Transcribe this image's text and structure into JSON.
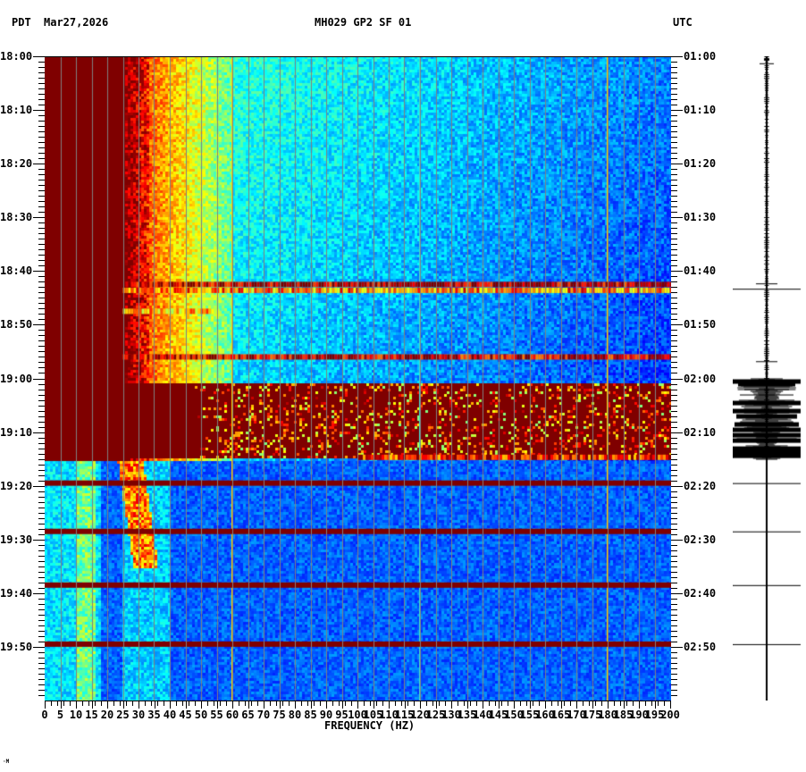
{
  "header": {
    "left_tz": "PDT",
    "date": "Mar27,2026",
    "station": "MH029 GP2 SF 01",
    "right_tz": "UTC"
  },
  "colors": {
    "background": "#ffffff",
    "saturated": "#800000",
    "grid": "#808080",
    "axis": "#000000",
    "colormap": [
      "#00008f",
      "#0000ff",
      "#0080ff",
      "#00ffff",
      "#80ff80",
      "#ffff00",
      "#ff8000",
      "#ff0000",
      "#800000"
    ]
  },
  "chart_data": {
    "type": "heatmap",
    "title": "MH029 GP2 SF 01",
    "subtitle": "Mar27,2026",
    "xlabel": "FREQUENCY (HZ)",
    "ylabel_left": "PDT",
    "ylabel_right": "UTC",
    "xlim": [
      0,
      200
    ],
    "x_ticks": [
      0,
      5,
      10,
      15,
      20,
      25,
      30,
      35,
      40,
      45,
      50,
      55,
      60,
      65,
      70,
      75,
      80,
      85,
      90,
      95,
      100,
      105,
      110,
      115,
      120,
      125,
      130,
      135,
      140,
      145,
      150,
      155,
      160,
      165,
      170,
      175,
      180,
      185,
      190,
      195,
      200
    ],
    "x_tick_labels": [
      "0",
      "5",
      "10",
      "15",
      "20",
      "25",
      "30",
      "35",
      "40",
      "45",
      "50",
      "55",
      "60",
      "65",
      "70",
      "75",
      "80",
      "85",
      "90",
      "95",
      "100",
      "105",
      "110",
      "115",
      "120",
      "125",
      "130",
      "135",
      "140",
      "145",
      "150",
      "155",
      "160",
      "165",
      "170",
      "175",
      "180",
      "185",
      "190",
      "195",
      "200"
    ],
    "y_left_ticks": [
      "18:00",
      "18:10",
      "18:20",
      "18:30",
      "18:40",
      "18:50",
      "19:00",
      "19:10",
      "19:20",
      "19:30",
      "19:40",
      "19:50"
    ],
    "y_right_ticks": [
      "01:00",
      "01:10",
      "01:20",
      "01:30",
      "01:40",
      "01:50",
      "02:00",
      "02:10",
      "02:20",
      "02:30",
      "02:40",
      "02:50"
    ],
    "time_span_minutes": 120,
    "minor_tick_minutes": 1,
    "grid": {
      "vertical_every_hz": 5,
      "horizontal": false
    },
    "persistent_lines_hz": [
      60,
      120,
      180
    ],
    "segments": [
      {
        "from_min": 0,
        "to_min": 75,
        "saturated_below_hz": 25,
        "decay_edge_hz": 32,
        "noise_floor": 0.28,
        "description": "strong low-frequency noise saturated 0-25 Hz, yellow-green to 60 Hz, blue above"
      },
      {
        "from_min": 75,
        "to_min": 120,
        "saturated_below_hz": 0,
        "noise_floor": 0.18,
        "description": "quiet period, cyan band 10-15 Hz, red/yellow band 25-32 Hz, blue elsewhere"
      }
    ],
    "horizontal_events_min": [
      {
        "min": 42.5,
        "intensity": 0.95,
        "from_hz": 25
      },
      {
        "min": 43.6,
        "intensity": 0.75,
        "from_hz": 25
      },
      {
        "min": 47.5,
        "intensity": 0.7,
        "from_hz": 25,
        "to_hz": 55
      },
      {
        "min": 56.0,
        "intensity": 0.92,
        "from_hz": 25
      },
      {
        "min": 60.5,
        "to_min": 74.5,
        "intensity": 1.0,
        "from_hz": 0,
        "partial": true
      },
      {
        "min": 74.7,
        "intensity": 0.85,
        "from_hz": 100
      },
      {
        "min": 79.5,
        "intensity": 1.0,
        "from_hz": 0
      },
      {
        "min": 88.5,
        "intensity": 1.0,
        "from_hz": 0
      },
      {
        "min": 98.5,
        "intensity": 1.0,
        "from_hz": 0
      },
      {
        "min": 109.5,
        "intensity": 1.0,
        "from_hz": 0
      }
    ]
  },
  "seismogram": {
    "label": "waveform trace",
    "events": [
      {
        "min": 0.5,
        "amp": 3
      },
      {
        "min": 1.3,
        "amp": 8
      },
      {
        "min": 42.3,
        "amp": 12
      },
      {
        "min": 43.3,
        "amp": 38
      },
      {
        "min": 56.8,
        "amp": 12
      },
      {
        "min": 60.5,
        "amp": 38
      },
      {
        "min": 61.0,
        "amp": 32
      },
      {
        "min": 62.0,
        "amp": 25
      },
      {
        "min": 63.0,
        "amp": 30
      },
      {
        "min": 64.5,
        "amp": 38
      },
      {
        "min": 66.0,
        "amp": 38
      },
      {
        "min": 67.0,
        "amp": 34
      },
      {
        "min": 68.5,
        "amp": 36
      },
      {
        "min": 69.5,
        "amp": 38
      },
      {
        "min": 70.5,
        "amp": 38
      },
      {
        "min": 71.5,
        "amp": 38
      },
      {
        "min": 73.0,
        "amp": 38
      },
      {
        "min": 74.0,
        "amp": 38
      },
      {
        "min": 79.5,
        "amp": 38
      },
      {
        "min": 88.5,
        "amp": 38
      },
      {
        "min": 98.5,
        "amp": 38
      },
      {
        "min": 109.5,
        "amp": 38
      }
    ]
  },
  "footer": {
    "corner_mark": "·M"
  }
}
